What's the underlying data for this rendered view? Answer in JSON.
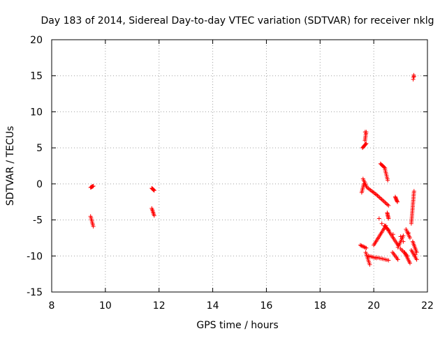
{
  "chart_data": {
    "type": "scatter",
    "title": "Day 183 of 2014, Sidereal Day-to-day VTEC variation (SDTVAR) for receiver nklg",
    "xlabel": "GPS time / hours",
    "ylabel": "SDTVAR / TECUs",
    "xlim": [
      8,
      22
    ],
    "ylim": [
      -15,
      20
    ],
    "xticks": [
      "8",
      "10",
      "12",
      "14",
      "16",
      "18",
      "20",
      "22"
    ],
    "yticks": [
      "20",
      "15",
      "10",
      "5",
      "0",
      "-5",
      "-10",
      "-15"
    ],
    "grid": true,
    "marker": "plus",
    "color": "#ff0000",
    "segments": [
      [
        9.45,
        9.55,
        -0.5,
        -0.3
      ],
      [
        9.45,
        9.55,
        -4.5,
        -5.9
      ],
      [
        11.73,
        11.82,
        -0.6,
        -0.9
      ],
      [
        11.73,
        11.82,
        -3.4,
        -4.4
      ],
      [
        19.58,
        19.72,
        5.0,
        5.6
      ],
      [
        19.67,
        19.72,
        6.0,
        7.2
      ],
      [
        19.55,
        19.63,
        -1.2,
        0.0
      ],
      [
        19.6,
        19.75,
        0.7,
        -0.5
      ],
      [
        19.75,
        20.1,
        -0.5,
        -1.5
      ],
      [
        20.1,
        20.55,
        -1.5,
        -3.0
      ],
      [
        20.5,
        20.55,
        -4.0,
        -4.8
      ],
      [
        20.25,
        20.42,
        2.8,
        2.2
      ],
      [
        20.42,
        20.52,
        2.0,
        0.5
      ],
      [
        20.8,
        20.88,
        -1.8,
        -2.5
      ],
      [
        19.5,
        19.72,
        -8.5,
        -8.9
      ],
      [
        19.7,
        19.85,
        -9.5,
        -11.2
      ],
      [
        19.8,
        20.1,
        -10.0,
        -10.3
      ],
      [
        20.1,
        20.55,
        -10.2,
        -10.6
      ],
      [
        20.0,
        20.45,
        -8.5,
        -5.8
      ],
      [
        20.4,
        20.55,
        -5.8,
        -6.4
      ],
      [
        20.55,
        20.9,
        -6.5,
        -8.5
      ],
      [
        20.7,
        20.9,
        -9.5,
        -10.5
      ],
      [
        20.9,
        21.1,
        -8.8,
        -7.2
      ],
      [
        21.0,
        21.25,
        -9.0,
        -10.0
      ],
      [
        21.15,
        21.35,
        -9.5,
        -11.0
      ],
      [
        21.2,
        21.35,
        -6.3,
        -7.5
      ],
      [
        21.4,
        21.5,
        -5.5,
        -1.0
      ],
      [
        21.4,
        21.6,
        -9.2,
        -10.5
      ],
      [
        21.45,
        21.6,
        -8.0,
        -9.5
      ]
    ],
    "points": [
      [
        21.47,
        14.5
      ],
      [
        21.48,
        14.8
      ],
      [
        21.49,
        15.1
      ],
      [
        21.5,
        14.9
      ],
      [
        19.68,
        7.2
      ],
      [
        20.72,
        -7.0
      ],
      [
        21.0,
        -7.3
      ],
      [
        21.1,
        -8.0
      ],
      [
        20.2,
        -4.8
      ],
      [
        20.3,
        -5.5
      ],
      [
        21.55,
        -9.8
      ],
      [
        21.3,
        -6.8
      ]
    ]
  }
}
